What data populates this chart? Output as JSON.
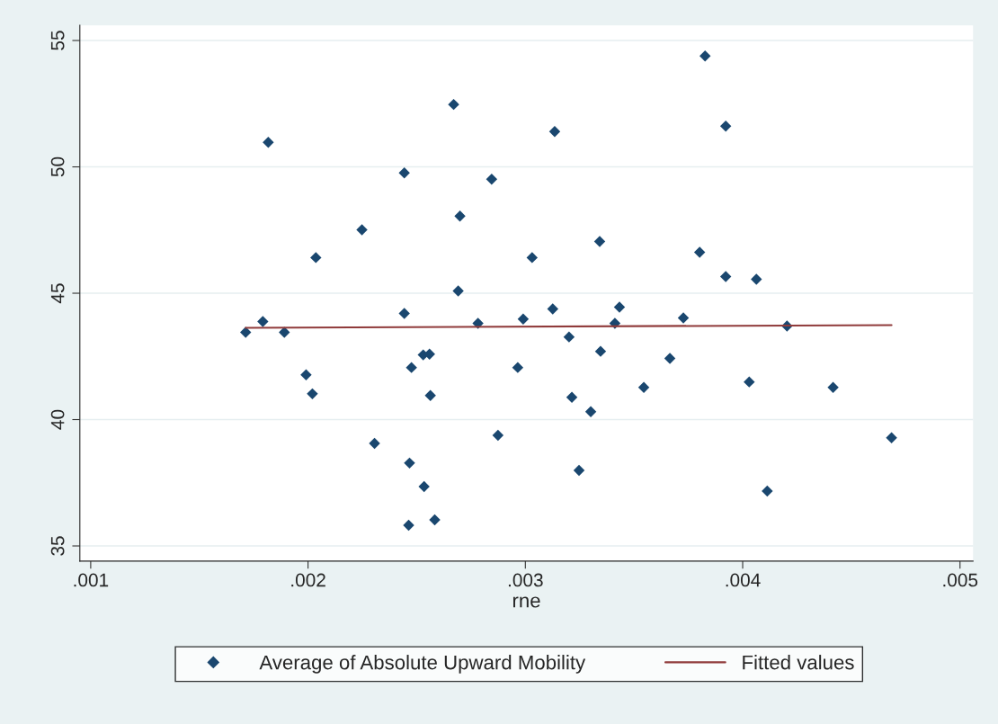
{
  "chart_data": {
    "type": "scatter",
    "xlabel": "rne",
    "xlim": [
      0.00095,
      0.00506
    ],
    "ylim": [
      34.4,
      55.6
    ],
    "xticks": [
      {
        "value": 0.001,
        "label": ".001"
      },
      {
        "value": 0.002,
        "label": ".002"
      },
      {
        "value": 0.003,
        "label": ".003"
      },
      {
        "value": 0.004,
        "label": ".004"
      },
      {
        "value": 0.005,
        "label": ".005"
      }
    ],
    "yticks": [
      35,
      40,
      45,
      50,
      55
    ],
    "grid": "y",
    "legend": "bottom",
    "marker": "diamond",
    "series": [
      {
        "name": "Average of Absolute Upward Mobility",
        "color": "#1a476f",
        "x": [
          0.001713,
          0.001792,
          0.001817,
          0.001891,
          0.001991,
          0.00202,
          0.002036,
          0.002248,
          0.002306,
          0.002443,
          0.002443,
          0.002467,
          0.002463,
          0.002476,
          0.00253,
          0.002534,
          0.002559,
          0.002563,
          0.002583,
          0.00267,
          0.002691,
          0.002699,
          0.002782,
          0.002845,
          0.002874,
          0.002965,
          0.00299,
          0.003031,
          0.003135,
          0.003126,
          0.003201,
          0.003214,
          0.003247,
          0.003301,
          0.003342,
          0.003346,
          0.003412,
          0.003433,
          0.003545,
          0.003665,
          0.003727,
          0.003802,
          0.003827,
          0.003922,
          0.003922,
          0.00403,
          0.004063,
          0.004113,
          0.004204,
          0.004416,
          0.004685
        ],
        "values": [
          43.45,
          43.88,
          50.97,
          43.45,
          41.77,
          41.02,
          46.41,
          47.51,
          39.06,
          49.76,
          44.2,
          38.28,
          35.82,
          42.06,
          42.56,
          37.35,
          42.59,
          40.95,
          36.03,
          52.47,
          45.09,
          48.05,
          43.81,
          49.51,
          39.38,
          42.06,
          43.98,
          46.41,
          51.4,
          44.38,
          43.27,
          40.88,
          37.99,
          40.31,
          47.05,
          42.7,
          43.81,
          44.45,
          41.27,
          42.42,
          44.02,
          46.62,
          54.39,
          51.61,
          45.66,
          41.49,
          45.55,
          37.17,
          43.7,
          41.27,
          39.28
        ]
      },
      {
        "name": "Fitted values",
        "type": "line",
        "marker": "none",
        "color": "#903b3b",
        "x": [
          0.001713,
          0.004685
        ],
        "values": [
          43.63,
          43.74
        ]
      }
    ]
  }
}
